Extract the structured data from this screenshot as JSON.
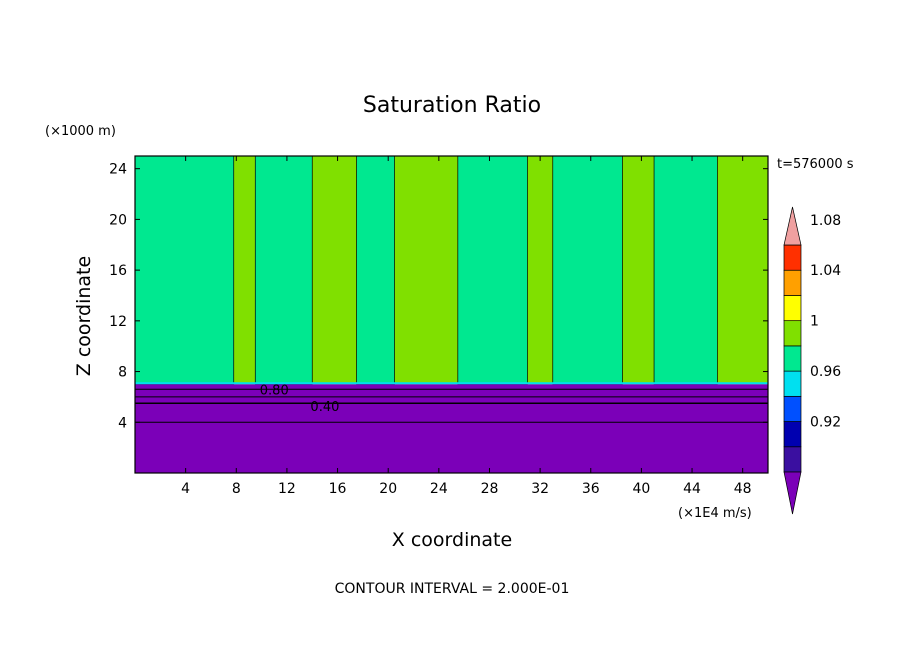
{
  "chart_data": {
    "type": "heatmap",
    "title": "Saturation Ratio",
    "xlabel": "X coordinate",
    "ylabel": "Z coordinate",
    "x_unit": "(×1E4 m/s)",
    "y_unit": "(×1000 m)",
    "time_label": "t=576000 s",
    "footer": "CONTOUR INTERVAL = 2.000E-01",
    "xlim": [
      0,
      50
    ],
    "ylim": [
      0,
      25
    ],
    "x_ticks": [
      4,
      8,
      12,
      16,
      20,
      24,
      28,
      32,
      36,
      40,
      44,
      48
    ],
    "y_ticks": [
      4,
      8,
      12,
      16,
      20,
      24
    ],
    "contour_labels": [
      {
        "text": "0.80",
        "x": 11,
        "z": 6.6
      },
      {
        "text": "0.40",
        "x": 15,
        "z": 5.3
      }
    ],
    "colorbar": {
      "levels": [
        0.92,
        0.96,
        1,
        1.04,
        1.08
      ],
      "colors": [
        "#7b00b8",
        "#3a0fa0",
        "#0000b0",
        "#0050ff",
        "#00e0f0",
        "#00e890",
        "#80e000",
        "#ffff00",
        "#ffa000",
        "#ff3000",
        "#f0a0a0"
      ]
    },
    "regions": {
      "lower_layer_top_z": 7,
      "lower_value": "<0.92",
      "upper_columns_x": [
        [
          0,
          7.8
        ],
        [
          9.5,
          14
        ],
        [
          17.5,
          20.5
        ],
        [
          25.5,
          31
        ],
        [
          33,
          38.5
        ],
        [
          41,
          46
        ]
      ],
      "upper_column_value": "0.98-1.00",
      "upper_background_value": "1.00-1.02",
      "contour_lines_z": [
        4,
        5.5,
        6.0,
        6.6
      ]
    }
  }
}
